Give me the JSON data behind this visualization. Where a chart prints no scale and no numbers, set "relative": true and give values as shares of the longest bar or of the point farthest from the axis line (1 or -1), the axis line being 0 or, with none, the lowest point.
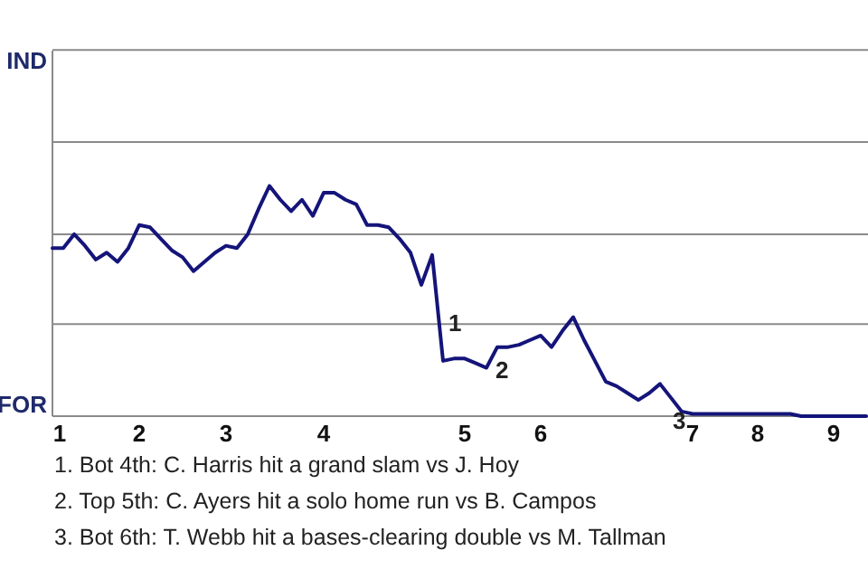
{
  "chart_data": {
    "type": "line",
    "relative": true,
    "categories": [
      "1",
      null,
      null,
      null,
      null,
      null,
      null,
      null,
      "2",
      null,
      null,
      null,
      null,
      null,
      null,
      null,
      "3",
      null,
      null,
      null,
      null,
      null,
      null,
      null,
      null,
      "4",
      null,
      null,
      null,
      null,
      null,
      null,
      null,
      null,
      null,
      null,
      null,
      null,
      "5",
      null,
      null,
      null,
      null,
      null,
      null,
      "6",
      null,
      null,
      null,
      null,
      null,
      null,
      null,
      null,
      null,
      null,
      null,
      null,
      null,
      "7",
      null,
      null,
      null,
      null,
      null,
      "8",
      null,
      null,
      null,
      null,
      null,
      null,
      "9",
      null,
      null,
      null
    ],
    "series": [
      {
        "color": "#14147a",
        "values": [
          0.73,
          0.73,
          0.79,
          0.74,
          0.68,
          0.71,
          0.67,
          0.73,
          0.83,
          0.82,
          0.77,
          0.72,
          0.69,
          0.63,
          0.67,
          0.71,
          0.74,
          0.73,
          0.79,
          0.9,
          1,
          0.94,
          0.89,
          0.94,
          0.87,
          0.97,
          0.97,
          0.94,
          0.92,
          0.83,
          0.83,
          0.82,
          0.77,
          0.71,
          0.57,
          0.7,
          0.24,
          0.25,
          0.25,
          0.23,
          0.21,
          0.3,
          0.3,
          0.31,
          0.33,
          0.35,
          0.3,
          0.37,
          0.43,
          0.33,
          0.24,
          0.15,
          0.13,
          0.1,
          0.07,
          0.1,
          0.14,
          0.08,
          0.02,
          0.01,
          0.01,
          0.01,
          0.01,
          0.01,
          0.01,
          0.01,
          0.01,
          0.01,
          0.01,
          0,
          0,
          0,
          0,
          0,
          0,
          0
        ]
      }
    ],
    "marker": "none",
    "line_style": "solid",
    "ref_lines": [
      {
        "axis": "y",
        "value": 0.4,
        "color": "#8a8a8a"
      },
      {
        "axis": "y",
        "value": 0.79,
        "color": "#8a8a8a"
      },
      {
        "axis": "y",
        "value": 1.19,
        "color": "#8a8a8a"
      },
      {
        "axis": "y",
        "value": 1.59,
        "color": "#8a8a8a"
      }
    ],
    "annotations": [
      "IND",
      "FOR",
      "1",
      "2",
      "3",
      "1. Bot 4th: C. Harris hit a grand slam vs J. Hoy",
      "2. Top 5th: C. Ayers hit a solo home run vs B. Campos",
      "3. Bot 6th: T. Webb hit a bases-clearing double vs M. Tallman"
    ]
  }
}
